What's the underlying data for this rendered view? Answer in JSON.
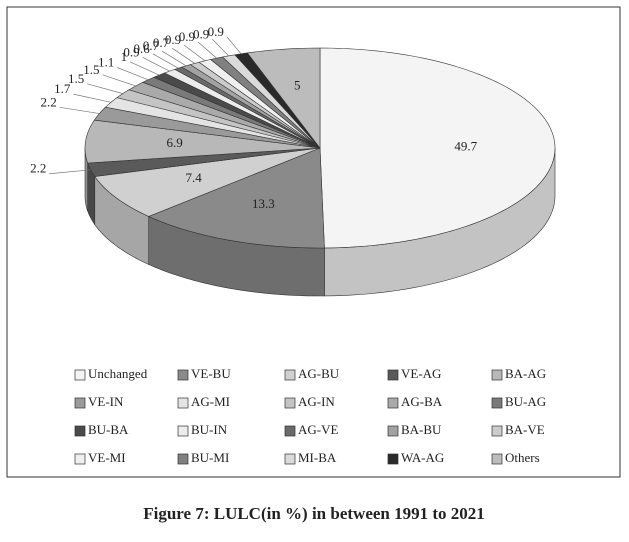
{
  "chart_data": {
    "type": "pie3d",
    "caption": "Figure 7: LULC(in %) in between 1991 to 2021",
    "categories": [
      "Unchanged",
      "VE-BU",
      "AG-BU",
      "VE-AG",
      "BA-AG",
      "VE-IN",
      "AG-MI",
      "AG-IN",
      "AG-BA",
      "BU-AG",
      "BU-BA",
      "BU-IN",
      "AG-VE",
      "BA-BU",
      "BA-VE",
      "VE-MI",
      "BU-MI",
      "MI-BA",
      "WA-AG",
      "Others"
    ],
    "values": [
      49.7,
      13.3,
      7.4,
      2.2,
      6.9,
      2.2,
      1.7,
      1.5,
      1.5,
      1.1,
      1.0,
      0.9,
      0.6,
      0.7,
      0.7,
      0.9,
      0.9,
      0.9,
      0.9,
      5.0
    ],
    "colors": [
      "#f4f4f4",
      "#8a8a8a",
      "#d0d0d0",
      "#5a5a5a",
      "#b8b8b8",
      "#9a9a9a",
      "#e4e4e4",
      "#c4c4c4",
      "#aaaaaa",
      "#7a7a7a",
      "#4a4a4a",
      "#ececec",
      "#6a6a6a",
      "#a2a2a2",
      "#cccccc",
      "#f0f0f0",
      "#808080",
      "#dadada",
      "#2a2a2a",
      "#bcbcbc"
    ]
  }
}
